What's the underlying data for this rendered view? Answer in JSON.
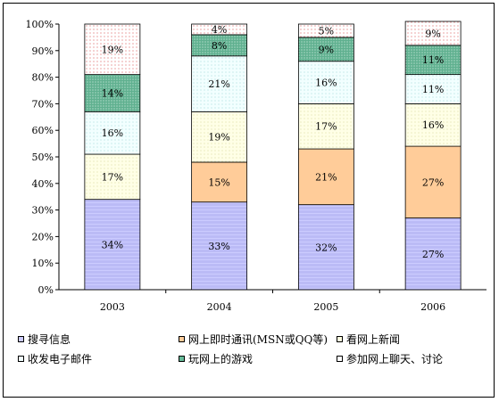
{
  "chart_data": {
    "type": "bar",
    "stacked": true,
    "percent": true,
    "categories": [
      "2003",
      "2004",
      "2005",
      "2006"
    ],
    "series": [
      {
        "name": "搜寻信息",
        "values": [
          34,
          33,
          32,
          27
        ],
        "color": "#ccccff",
        "pattern": "hatch-blue"
      },
      {
        "name": "网上即时通讯(MSN或QQ等)",
        "values": [
          0,
          15,
          21,
          27
        ],
        "color": "#ffcc99",
        "pattern": "solid"
      },
      {
        "name": "看网上新闻",
        "values": [
          17,
          19,
          17,
          16
        ],
        "color": "#ffffe0",
        "pattern": "dots-yellow"
      },
      {
        "name": "收发电子邮件",
        "values": [
          16,
          21,
          16,
          11
        ],
        "color": "#f0ffff",
        "pattern": "dots-cyan"
      },
      {
        "name": "玩网上的游戏",
        "values": [
          14,
          8,
          9,
          11
        ],
        "color": "#66bb99",
        "pattern": "dots-green"
      },
      {
        "name": "参加网上聊天、讨论",
        "values": [
          19,
          4,
          5,
          9
        ],
        "color": "#ffffff",
        "pattern": "dots-red"
      }
    ],
    "data_labels": [
      [
        "34%",
        "",
        "17%",
        "16%",
        "14%",
        "19%"
      ],
      [
        "33%",
        "15%",
        "19%",
        "21%",
        "8%",
        "4%"
      ],
      [
        "32%",
        "21%",
        "17%",
        "16%",
        "9%",
        "5%"
      ],
      [
        "27%",
        "27%",
        "16%",
        "11%",
        "11%",
        "9%"
      ]
    ],
    "yticks": [
      "0%",
      "10%",
      "20%",
      "30%",
      "40%",
      "50%",
      "60%",
      "70%",
      "80%",
      "90%",
      "100%"
    ],
    "ylim": [
      0,
      100
    ],
    "title": "",
    "xlabel": "",
    "ylabel": "",
    "legend": "bottom",
    "grid": false
  }
}
